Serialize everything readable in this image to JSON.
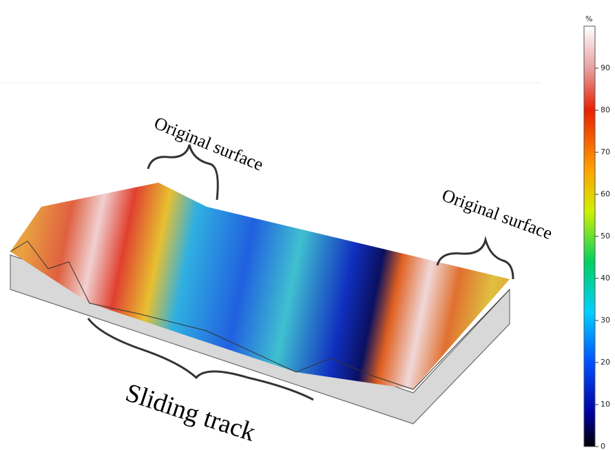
{
  "annotations": {
    "left_label": "Original surface",
    "right_label": "Original surface",
    "bottom_label": "Sliding track"
  },
  "colorbar": {
    "unit": "%",
    "lim": [
      0,
      100
    ],
    "ticks": [
      0,
      10,
      20,
      30,
      40,
      50,
      60,
      70,
      80,
      90
    ]
  }
}
